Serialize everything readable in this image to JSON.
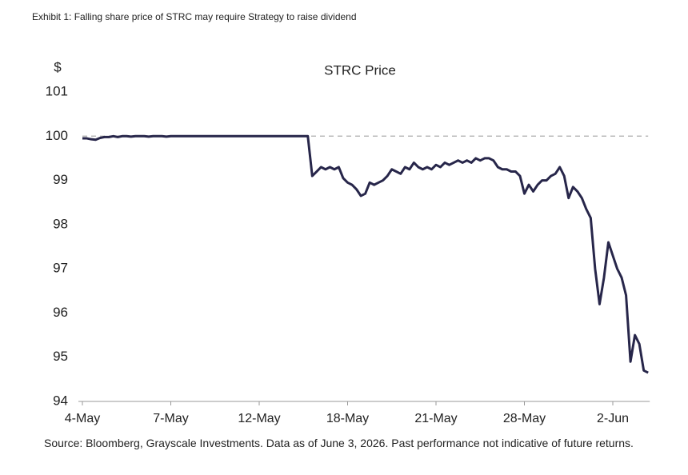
{
  "chart_data": {
    "type": "line",
    "title": "Exhibit 1: Falling share price of STRC may require Strategy to raise dividend",
    "chart_title": "STRC Price",
    "y_label": "$",
    "source": "Source: Bloomberg, Grayscale Investments. Data as of June 3, 2026. Past performance not indicative of future returns.",
    "categories": [
      "4-May",
      null,
      null,
      null,
      null,
      null,
      null,
      null,
      null,
      null,
      null,
      null,
      null,
      null,
      null,
      null,
      null,
      null,
      null,
      null,
      "7-May",
      null,
      null,
      null,
      null,
      null,
      null,
      null,
      null,
      null,
      null,
      null,
      null,
      null,
      null,
      null,
      null,
      null,
      null,
      null,
      "12-May",
      null,
      null,
      null,
      null,
      null,
      null,
      null,
      null,
      null,
      null,
      null,
      null,
      null,
      null,
      null,
      null,
      null,
      null,
      null,
      "18-May",
      null,
      null,
      null,
      null,
      null,
      null,
      null,
      null,
      null,
      null,
      null,
      null,
      null,
      null,
      null,
      null,
      null,
      null,
      null,
      "21-May",
      null,
      null,
      null,
      null,
      null,
      null,
      null,
      null,
      null,
      null,
      null,
      null,
      null,
      null,
      null,
      null,
      null,
      null,
      null,
      "28-May",
      null,
      null,
      null,
      null,
      null,
      null,
      null,
      null,
      null,
      null,
      null,
      null,
      null,
      null,
      null,
      null,
      null,
      null,
      null,
      "2-Jun",
      null,
      null,
      null,
      null,
      null,
      null,
      null,
      null
    ],
    "series": [
      {
        "name": "STRC",
        "color": "#27264a",
        "values": [
          99.95,
          99.95,
          99.93,
          99.92,
          99.96,
          99.98,
          99.98,
          100.0,
          99.98,
          100.0,
          100.0,
          99.99,
          100.0,
          100.0,
          100.0,
          99.99,
          100.0,
          100.0,
          100.0,
          99.99,
          100.0,
          100.0,
          100.0,
          100.0,
          100.0,
          100.0,
          100.0,
          100.0,
          100.0,
          100.0,
          100.0,
          100.0,
          100.0,
          100.0,
          100.0,
          100.0,
          100.0,
          100.0,
          100.0,
          100.0,
          100.0,
          100.0,
          100.0,
          100.0,
          100.0,
          100.0,
          100.0,
          100.0,
          100.0,
          100.0,
          100.0,
          100.0,
          99.1,
          99.2,
          99.3,
          99.25,
          99.3,
          99.25,
          99.3,
          99.05,
          98.95,
          98.9,
          98.8,
          98.65,
          98.7,
          98.95,
          98.9,
          98.95,
          99.0,
          99.1,
          99.25,
          99.2,
          99.15,
          99.3,
          99.25,
          99.4,
          99.3,
          99.25,
          99.3,
          99.25,
          99.35,
          99.3,
          99.4,
          99.35,
          99.4,
          99.45,
          99.4,
          99.45,
          99.4,
          99.5,
          99.45,
          99.5,
          99.5,
          99.45,
          99.3,
          99.25,
          99.25,
          99.2,
          99.2,
          99.1,
          98.7,
          98.9,
          98.75,
          98.9,
          99.0,
          99.0,
          99.1,
          99.15,
          99.3,
          99.1,
          98.6,
          98.85,
          98.75,
          98.6,
          98.35,
          98.15,
          97.0,
          96.2,
          96.8,
          97.6,
          97.3,
          97.0,
          96.8,
          96.4,
          94.9,
          95.5,
          95.3,
          94.7,
          94.65
        ]
      }
    ],
    "reference_line": 100,
    "ylim": [
      94,
      101
    ],
    "yticks": [
      94,
      95,
      96,
      97,
      98,
      99,
      100,
      101
    ],
    "grid": false
  }
}
